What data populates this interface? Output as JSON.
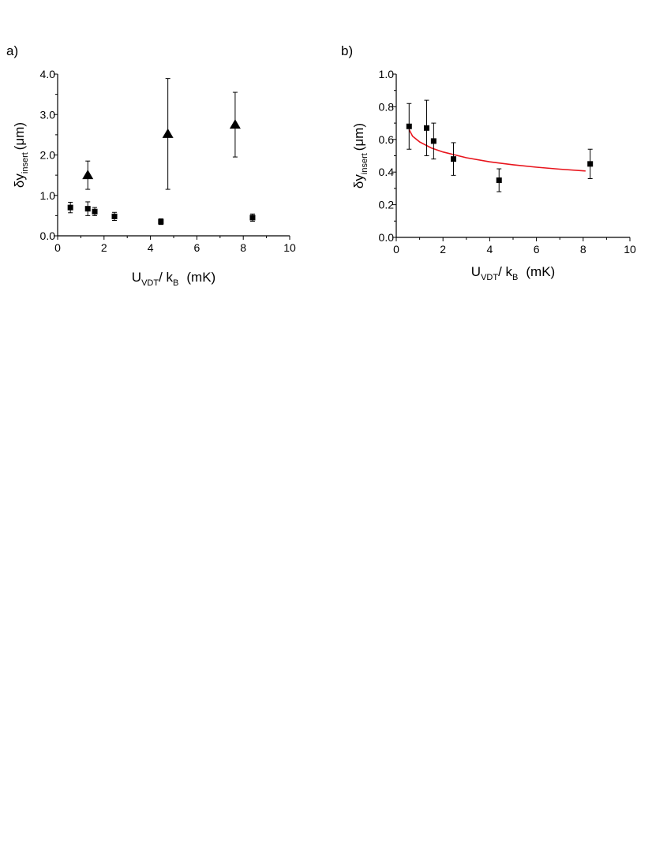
{
  "chart_data": [
    {
      "panel_label": "a)",
      "type": "scatter",
      "xlim": [
        0,
        10
      ],
      "ylim": [
        0,
        4
      ],
      "x_ticks": [
        "0",
        "2",
        "4",
        "6",
        "8",
        "10"
      ],
      "y_ticks": [
        "0.0",
        "1.0",
        "2.0",
        "3.0",
        "4.0"
      ],
      "xlabel": {
        "main": "U",
        "sub": "VDT",
        "mid": "/ k",
        "sub2": "B",
        "unit": "(mK)"
      },
      "ylabel": {
        "main": "δy",
        "sub": "insert",
        "unit": "(μm)"
      },
      "series": [
        {
          "marker": "square",
          "color": "#000000",
          "points": [
            {
              "x": 0.55,
              "y": 0.7,
              "err": 0.13
            },
            {
              "x": 1.3,
              "y": 0.67,
              "err": 0.17
            },
            {
              "x": 1.6,
              "y": 0.6,
              "err": 0.1
            },
            {
              "x": 2.45,
              "y": 0.48,
              "err": 0.1
            },
            {
              "x": 4.45,
              "y": 0.35,
              "err": 0.07
            },
            {
              "x": 8.4,
              "y": 0.45,
              "err": 0.09
            }
          ]
        },
        {
          "marker": "triangle",
          "color": "#000000",
          "points": [
            {
              "x": 1.3,
              "y": 1.5,
              "err": 0.35
            },
            {
              "x": 4.75,
              "y": 2.52,
              "err": 1.37
            },
            {
              "x": 7.65,
              "y": 2.75,
              "err": 0.8
            }
          ]
        }
      ]
    },
    {
      "panel_label": "b)",
      "type": "scatter",
      "xlim": [
        0,
        10
      ],
      "ylim": [
        0,
        1
      ],
      "x_ticks": [
        "0",
        "2",
        "4",
        "6",
        "8",
        "10"
      ],
      "y_ticks": [
        "0.0",
        "0.2",
        "0.4",
        "0.6",
        "0.8",
        "1.0"
      ],
      "xlabel": {
        "main": "U",
        "sub": "VDT",
        "mid": "/ k",
        "sub2": "B",
        "unit": "(mK)"
      },
      "ylabel": {
        "main": "δy",
        "sub": "insert",
        "unit": "(μm)"
      },
      "series": [
        {
          "marker": "square",
          "color": "#000000",
          "points": [
            {
              "x": 0.55,
              "y": 0.68,
              "err": 0.14
            },
            {
              "x": 1.3,
              "y": 0.67,
              "err": 0.17
            },
            {
              "x": 1.6,
              "y": 0.59,
              "err": 0.11
            },
            {
              "x": 2.45,
              "y": 0.48,
              "err": 0.1
            },
            {
              "x": 4.4,
              "y": 0.35,
              "err": 0.07
            },
            {
              "x": 8.3,
              "y": 0.45,
              "err": 0.09
            }
          ]
        }
      ],
      "fit_curve": {
        "color": "#e8141c",
        "points": [
          {
            "x": 0.55,
            "y": 0.66
          },
          {
            "x": 0.7,
            "y": 0.62
          },
          {
            "x": 1.0,
            "y": 0.585
          },
          {
            "x": 1.5,
            "y": 0.548
          },
          {
            "x": 2.0,
            "y": 0.523
          },
          {
            "x": 3.0,
            "y": 0.488
          },
          {
            "x": 4.0,
            "y": 0.463
          },
          {
            "x": 5.0,
            "y": 0.445
          },
          {
            "x": 6.0,
            "y": 0.43
          },
          {
            "x": 7.0,
            "y": 0.418
          },
          {
            "x": 8.1,
            "y": 0.407
          }
        ]
      }
    }
  ]
}
